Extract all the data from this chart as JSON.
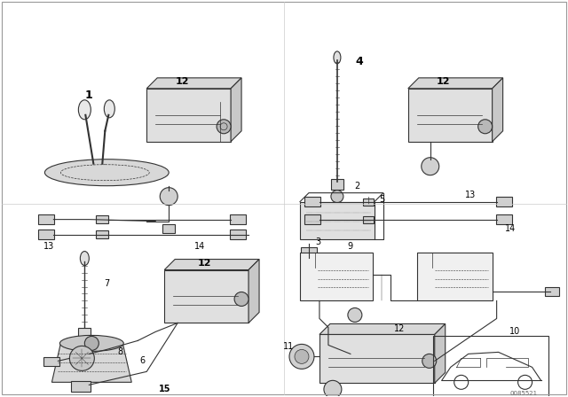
{
  "bg_color": "#ffffff",
  "line_color": "#000000",
  "lw": 0.8,
  "watermark": "0085521"
}
